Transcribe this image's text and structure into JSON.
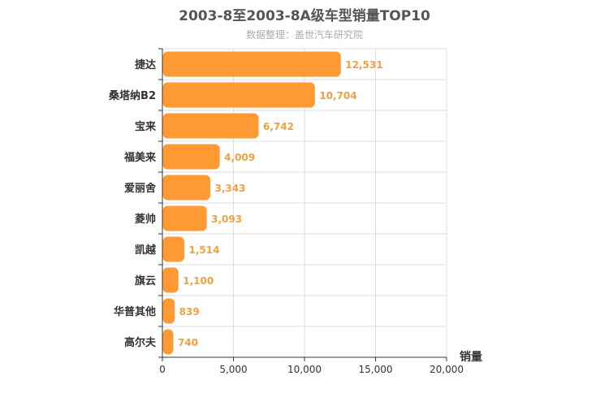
{
  "chart_data": {
    "type": "bar",
    "orientation": "horizontal",
    "title": "2003-8至2003-8A级车型销量TOP10",
    "subtitle": "数据整理：盖世汽车研究院",
    "categories": [
      "捷达",
      "桑塔纳B2",
      "宝来",
      "福美来",
      "爱丽舍",
      "菱帅",
      "凯越",
      "旗云",
      "华普其他",
      "高尔夫"
    ],
    "values": [
      12531,
      10704,
      6742,
      4009,
      3343,
      3093,
      1514,
      1100,
      839,
      740
    ],
    "value_labels": [
      "12,531",
      "10,704",
      "6,742",
      "4,009",
      "3,343",
      "3,093",
      "1,514",
      "1,100",
      "839",
      "740"
    ],
    "xlabel": "销量",
    "xlim": [
      0,
      20000
    ],
    "xticks": [
      0,
      5000,
      10000,
      15000,
      20000
    ],
    "xtick_labels": [
      "0",
      "5,000",
      "10,000",
      "15,000",
      "20,000"
    ],
    "grid": true,
    "bar_color": "#ff9933",
    "label_color": "#f0a040"
  }
}
